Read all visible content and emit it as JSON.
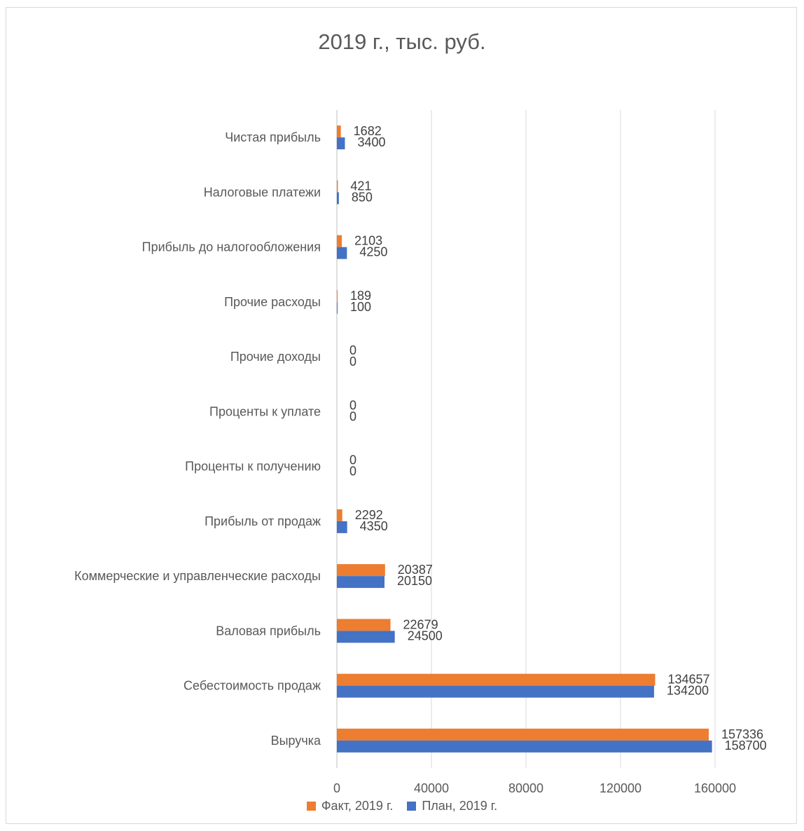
{
  "chart_data": {
    "type": "bar",
    "orientation": "horizontal",
    "title": "2019 г., тыс. руб.",
    "categories": [
      "Выручка",
      "Себестоимость продаж",
      "Валовая прибыль",
      "Коммерческие и управленческие расходы",
      "Прибыль от продаж",
      "Проценты к получению",
      "Проценты к уплате",
      "Прочие доходы",
      "Прочие расходы",
      "Прибыль до налогообложения",
      "Налоговые платежи",
      "Чистая прибыль"
    ],
    "series": [
      {
        "name": "Факт, 2019 г.",
        "color": "#ED7D31",
        "values": [
          157336,
          134657,
          22679,
          20387,
          2292,
          0,
          0,
          0,
          189,
          2103,
          421,
          1682
        ]
      },
      {
        "name": "План, 2019 г.",
        "color": "#4472C4",
        "values": [
          158700,
          134200,
          24500,
          20150,
          4350,
          0,
          0,
          0,
          100,
          4250,
          850,
          3400
        ]
      }
    ],
    "xlim": [
      0,
      160000
    ],
    "xticks": [
      "0",
      "40000",
      "80000",
      "120000",
      "160000"
    ],
    "grid": true,
    "legend_position": "bottom"
  }
}
